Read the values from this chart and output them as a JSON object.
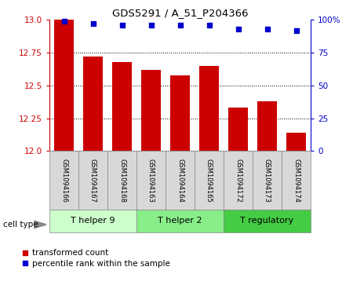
{
  "title": "GDS5291 / A_51_P204366",
  "samples": [
    "GSM1094166",
    "GSM1094167",
    "GSM1094168",
    "GSM1094163",
    "GSM1094164",
    "GSM1094165",
    "GSM1094172",
    "GSM1094173",
    "GSM1094174"
  ],
  "bar_values": [
    13.0,
    12.72,
    12.68,
    12.62,
    12.58,
    12.65,
    12.33,
    12.38,
    12.14
  ],
  "percentile_values": [
    99,
    97,
    96,
    96,
    96,
    96,
    93,
    93,
    92
  ],
  "ylim_left": [
    12.0,
    13.0
  ],
  "ylim_right": [
    0,
    100
  ],
  "yticks_left": [
    12.0,
    12.25,
    12.5,
    12.75,
    13.0
  ],
  "yticks_right": [
    0,
    25,
    50,
    75,
    100
  ],
  "bar_color": "#cc0000",
  "dot_color": "#0000cc",
  "groups": [
    {
      "label": "T helper 9",
      "indices": [
        0,
        1,
        2
      ],
      "color": "#ccffcc"
    },
    {
      "label": "T helper 2",
      "indices": [
        3,
        4,
        5
      ],
      "color": "#88ee88"
    },
    {
      "label": "T regulatory",
      "indices": [
        6,
        7,
        8
      ],
      "color": "#44cc44"
    }
  ],
  "cell_type_label": "cell type",
  "legend_bar_label": "transformed count",
  "legend_dot_label": "percentile rank within the sample",
  "tick_color_left": "#cc0000",
  "tick_color_right": "#0000cc",
  "sample_box_color": "#d8d8d8",
  "spine_color": "#888888"
}
